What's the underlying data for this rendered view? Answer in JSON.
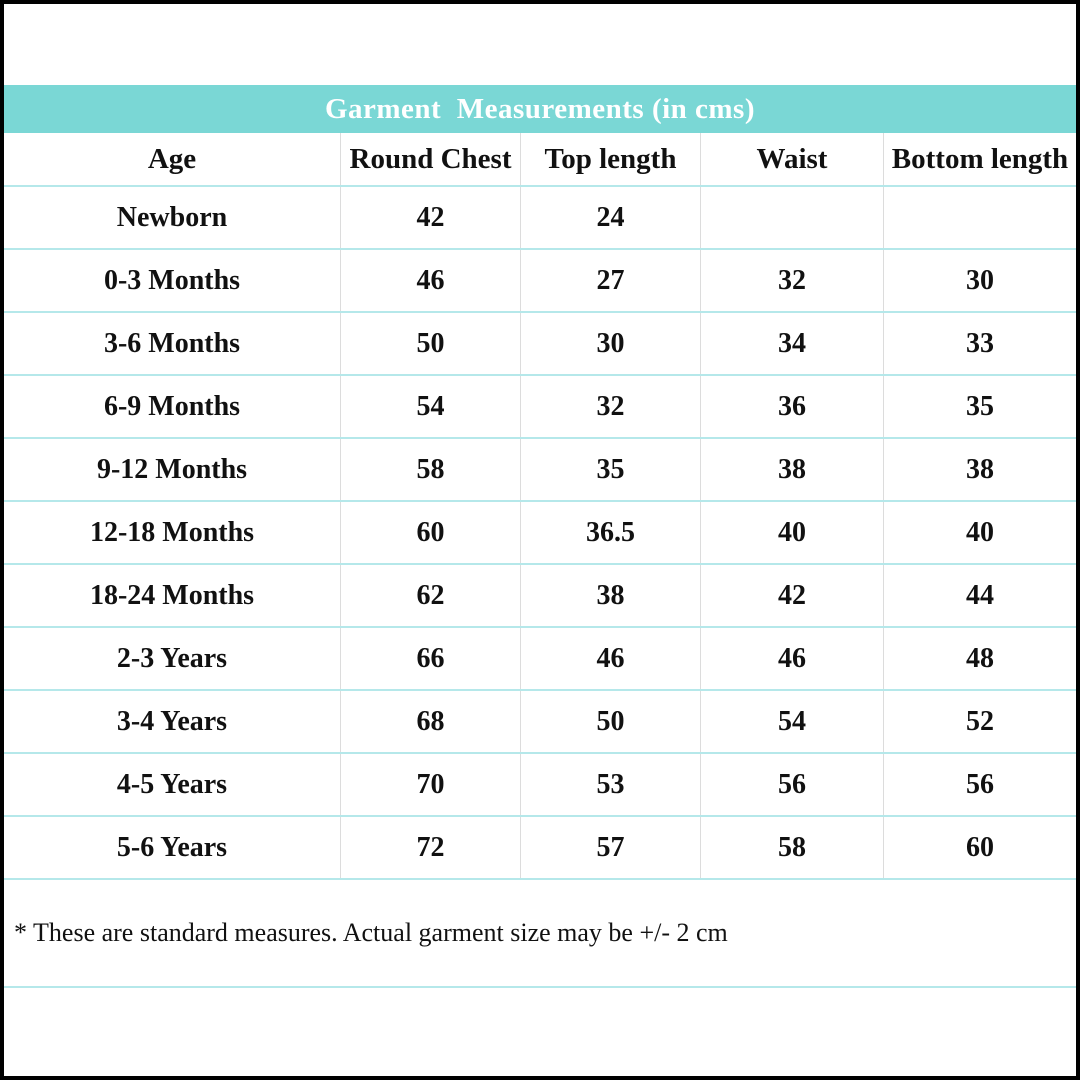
{
  "title": "Garment  Measurements (in cms)",
  "table": {
    "columns": [
      "Age",
      "Round Chest",
      "Top length",
      "Waist",
      "Bottom length"
    ],
    "rows": [
      {
        "age": "Newborn",
        "values": [
          "42",
          "24",
          "",
          ""
        ]
      },
      {
        "age": "0-3 Months",
        "values": [
          "46",
          "27",
          "32",
          "30"
        ]
      },
      {
        "age": "3-6 Months",
        "values": [
          "50",
          "30",
          "34",
          "33"
        ]
      },
      {
        "age": "6-9 Months",
        "values": [
          "54",
          "32",
          "36",
          "35"
        ]
      },
      {
        "age": "9-12 Months",
        "values": [
          "58",
          "35",
          "38",
          "38"
        ]
      },
      {
        "age": "12-18 Months",
        "values": [
          "60",
          "36.5",
          "40",
          "40"
        ]
      },
      {
        "age": "18-24 Months",
        "values": [
          "62",
          "38",
          "42",
          "44"
        ]
      },
      {
        "age": "2-3 Years",
        "values": [
          "66",
          "46",
          "46",
          "48"
        ]
      },
      {
        "age": "3-4 Years",
        "values": [
          "68",
          "50",
          "54",
          "52"
        ]
      },
      {
        "age": "4-5 Years",
        "values": [
          "70",
          "53",
          "56",
          "56"
        ]
      },
      {
        "age": "5-6 Years",
        "values": [
          "72",
          "57",
          "58",
          "60"
        ]
      }
    ]
  },
  "note": "* These are standard measures. Actual garment size may be +/- 2 cm",
  "colors": {
    "title_band_bg": "#7ad7d5",
    "title_text": "#ffffff",
    "row_divider": "#b5e8ea",
    "column_divider": "#dcdcdc",
    "outer_border": "#000000",
    "body_text": "#111111"
  },
  "chart_data": {
    "type": "table",
    "title": "Garment  Measurements (in cms)",
    "columns": [
      "Age",
      "Round Chest",
      "Top length",
      "Waist",
      "Bottom length"
    ],
    "rows": [
      [
        "Newborn",
        "42",
        "24",
        "",
        ""
      ],
      [
        "0-3 Months",
        "46",
        "27",
        "32",
        "30"
      ],
      [
        "3-6 Months",
        "50",
        "30",
        "34",
        "33"
      ],
      [
        "6-9 Months",
        "54",
        "32",
        "36",
        "35"
      ],
      [
        "9-12 Months",
        "58",
        "35",
        "38",
        "38"
      ],
      [
        "12-18 Months",
        "60",
        "36.5",
        "40",
        "40"
      ],
      [
        "18-24 Months",
        "62",
        "38",
        "42",
        "44"
      ],
      [
        "2-3 Years",
        "66",
        "46",
        "46",
        "48"
      ],
      [
        "3-4 Years",
        "68",
        "50",
        "54",
        "52"
      ],
      [
        "4-5 Years",
        "70",
        "53",
        "56",
        "56"
      ],
      [
        "5-6 Years",
        "72",
        "57",
        "58",
        "60"
      ]
    ],
    "footnote": "* These are standard measures. Actual garment size may be +/- 2 cm"
  }
}
